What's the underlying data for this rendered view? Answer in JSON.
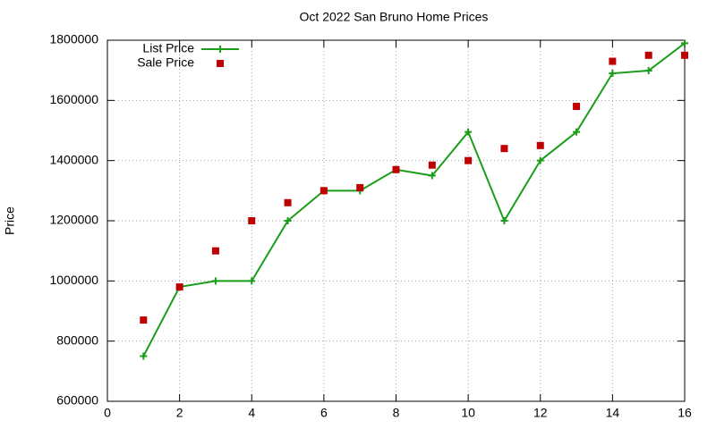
{
  "chart_data": {
    "type": "line",
    "title": "Oct 2022 San Bruno Home Prices",
    "ylabel": "Price",
    "x": [
      1,
      2,
      3,
      4,
      5,
      6,
      7,
      8,
      9,
      10,
      11,
      12,
      13,
      14,
      15,
      16
    ],
    "series": [
      {
        "name": "List Price",
        "color": "#1a9e1a",
        "line": true,
        "marker": "plus",
        "values": [
          750000,
          980000,
          1000000,
          1000000,
          1200000,
          1300000,
          1300000,
          1370000,
          1350000,
          1495000,
          1200000,
          1400000,
          1495000,
          1690000,
          1699000,
          1790000
        ]
      },
      {
        "name": "Sale Price",
        "color": "#c00000",
        "line": false,
        "marker": "square",
        "values": [
          870000,
          980000,
          1100000,
          1200000,
          1260000,
          1300000,
          1310000,
          1370000,
          1385000,
          1400000,
          1440000,
          1450000,
          1580000,
          1730000,
          1750000,
          1750000
        ]
      }
    ],
    "xlim": [
      0,
      16
    ],
    "xticks": [
      0,
      2,
      4,
      6,
      8,
      10,
      12,
      14,
      16
    ],
    "ylim": [
      600000,
      1800000
    ],
    "yticks": [
      600000,
      800000,
      1000000,
      1200000,
      1400000,
      1600000,
      1800000
    ],
    "grid": true,
    "legend": "top-left"
  }
}
